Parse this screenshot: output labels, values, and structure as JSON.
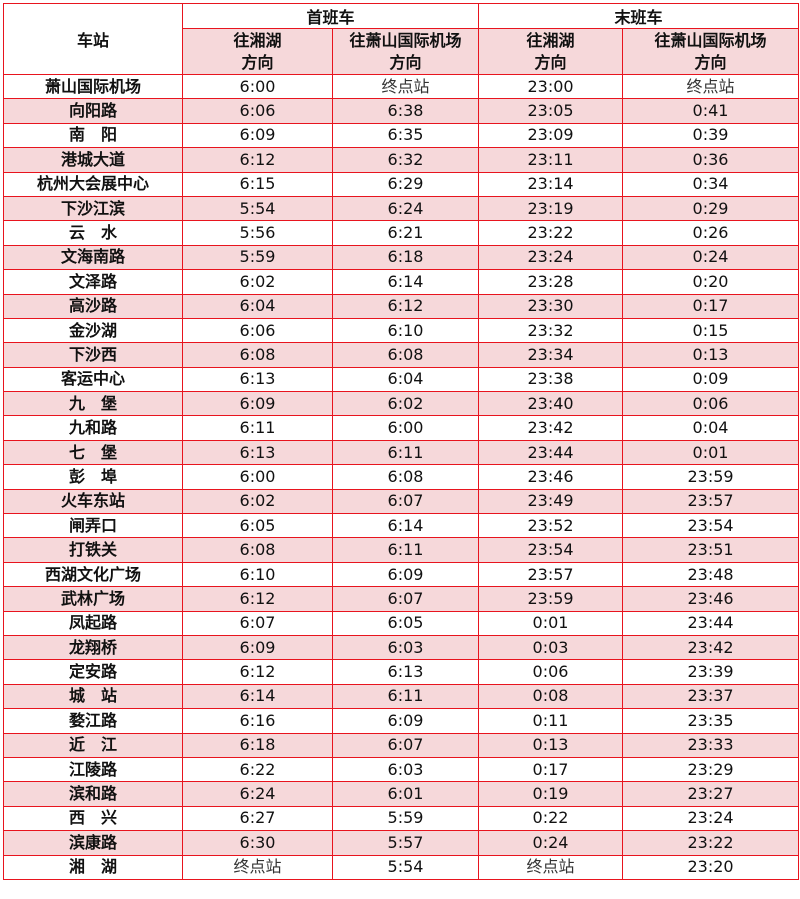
{
  "header": {
    "station": "车站",
    "first": "首班车",
    "last": "末班车",
    "dir_xianghu": "往湘湖\n方向",
    "dir_airport": "往萧山国际机场\n方向"
  },
  "colors": {
    "border": "#e8141e",
    "stripe": "#f6d8da"
  },
  "rows": [
    [
      "萧山国际机场",
      "6:00",
      "终点站",
      "23:00",
      "终点站"
    ],
    [
      "向阳路",
      "6:06",
      "6:38",
      "23:05",
      "0:41"
    ],
    [
      "南　阳",
      "6:09",
      "6:35",
      "23:09",
      "0:39"
    ],
    [
      "港城大道",
      "6:12",
      "6:32",
      "23:11",
      "0:36"
    ],
    [
      "杭州大会展中心",
      "6:15",
      "6:29",
      "23:14",
      "0:34"
    ],
    [
      "下沙江滨",
      "5:54",
      "6:24",
      "23:19",
      "0:29"
    ],
    [
      "云　水",
      "5:56",
      "6:21",
      "23:22",
      "0:26"
    ],
    [
      "文海南路",
      "5:59",
      "6:18",
      "23:24",
      "0:24"
    ],
    [
      "文泽路",
      "6:02",
      "6:14",
      "23:28",
      "0:20"
    ],
    [
      "高沙路",
      "6:04",
      "6:12",
      "23:30",
      "0:17"
    ],
    [
      "金沙湖",
      "6:06",
      "6:10",
      "23:32",
      "0:15"
    ],
    [
      "下沙西",
      "6:08",
      "6:08",
      "23:34",
      "0:13"
    ],
    [
      "客运中心",
      "6:13",
      "6:04",
      "23:38",
      "0:09"
    ],
    [
      "九　堡",
      "6:09",
      "6:02",
      "23:40",
      "0:06"
    ],
    [
      "九和路",
      "6:11",
      "6:00",
      "23:42",
      "0:04"
    ],
    [
      "七　堡",
      "6:13",
      "6:11",
      "23:44",
      "0:01"
    ],
    [
      "彭　埠",
      "6:00",
      "6:08",
      "23:46",
      "23:59"
    ],
    [
      "火车东站",
      "6:02",
      "6:07",
      "23:49",
      "23:57"
    ],
    [
      "闸弄口",
      "6:05",
      "6:14",
      "23:52",
      "23:54"
    ],
    [
      "打铁关",
      "6:08",
      "6:11",
      "23:54",
      "23:51"
    ],
    [
      "西湖文化广场",
      "6:10",
      "6:09",
      "23:57",
      "23:48"
    ],
    [
      "武林广场",
      "6:12",
      "6:07",
      "23:59",
      "23:46"
    ],
    [
      "凤起路",
      "6:07",
      "6:05",
      "0:01",
      "23:44"
    ],
    [
      "龙翔桥",
      "6:09",
      "6:03",
      "0:03",
      "23:42"
    ],
    [
      "定安路",
      "6:12",
      "6:13",
      "0:06",
      "23:39"
    ],
    [
      "城　站",
      "6:14",
      "6:11",
      "0:08",
      "23:37"
    ],
    [
      "婺江路",
      "6:16",
      "6:09",
      "0:11",
      "23:35"
    ],
    [
      "近　江",
      "6:18",
      "6:07",
      "0:13",
      "23:33"
    ],
    [
      "江陵路",
      "6:22",
      "6:03",
      "0:17",
      "23:29"
    ],
    [
      "滨和路",
      "6:24",
      "6:01",
      "0:19",
      "23:27"
    ],
    [
      "西　兴",
      "6:27",
      "5:59",
      "0:22",
      "23:24"
    ],
    [
      "滨康路",
      "6:30",
      "5:57",
      "0:24",
      "23:22"
    ],
    [
      "湘　湖",
      "终点站",
      "5:54",
      "终点站",
      "23:20"
    ]
  ]
}
